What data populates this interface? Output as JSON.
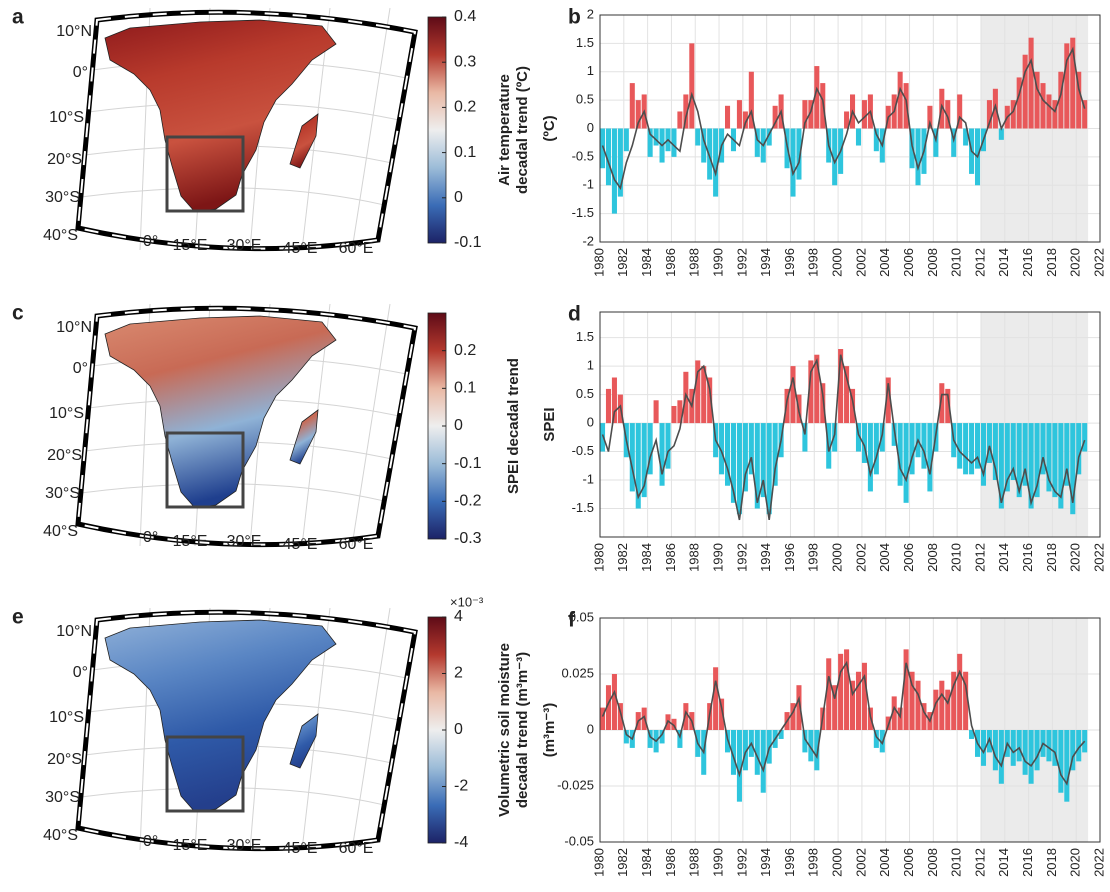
{
  "chart_data": [
    {
      "type": "map",
      "panel_label": "a",
      "lat_labels": [
        "10°N",
        "0°",
        "10°S",
        "20°S",
        "30°S",
        "40°S"
      ],
      "lon_labels": [
        "0°",
        "15°E",
        "30°E",
        "45°E",
        "60°E"
      ],
      "land_colors": [
        "#8e1a1c",
        "#b83a2c",
        "#c9523f",
        "#7d1616"
      ],
      "colorbar": {
        "label": [
          "Air temperature",
          "decadal trend (ºC)"
        ],
        "clim": [
          -0.1,
          0.4
        ],
        "cticks": [
          -0.1,
          0,
          0.1,
          0.2,
          0.3,
          0.4
        ],
        "colors": [
          "#5e0b17",
          "#b4392e",
          "#e9b8a4",
          "#eeeeee",
          "#9cbcd8",
          "#3a6cb6",
          "#1c2266"
        ]
      }
    },
    {
      "type": "combo",
      "panel_label": "b",
      "ylabel": "(ºC)",
      "x": [
        1980,
        1980.5,
        1981,
        1981.5,
        1982,
        1982.5,
        1983,
        1983.5,
        1984,
        1984.5,
        1985,
        1985.5,
        1986,
        1986.5,
        1987,
        1987.5,
        1988,
        1988.5,
        1989,
        1989.5,
        1990,
        1990.5,
        1991,
        1991.5,
        1992,
        1992.5,
        1993,
        1993.5,
        1994,
        1994.5,
        1995,
        1995.5,
        1996,
        1996.5,
        1997,
        1997.5,
        1998,
        1998.5,
        1999,
        1999.5,
        2000,
        2000.5,
        2001,
        2001.5,
        2002,
        2002.5,
        2003,
        2003.5,
        2004,
        2004.5,
        2005,
        2005.5,
        2006,
        2006.5,
        2007,
        2007.5,
        2008,
        2008.5,
        2009,
        2009.5,
        2010,
        2010.5,
        2011,
        2011.5,
        2012,
        2012.5,
        2013,
        2013.5,
        2014,
        2014.5,
        2015,
        2015.5,
        2016,
        2016.5,
        2017,
        2017.5,
        2018,
        2018.5,
        2019,
        2019.5,
        2020,
        2020.5
      ],
      "bars": {
        "positive_color": "#e8585a",
        "negative_color": "#2ec5dd",
        "values": [
          -0.7,
          -1.0,
          -1.5,
          -1.2,
          -0.4,
          0.8,
          0.5,
          0.6,
          -0.5,
          -0.3,
          -0.6,
          -0.4,
          -0.5,
          0.3,
          0.6,
          1.5,
          -0.3,
          -0.6,
          -0.9,
          -1.2,
          -0.6,
          0.4,
          -0.4,
          0.5,
          0.3,
          1.0,
          -0.5,
          -0.6,
          -0.3,
          0.4,
          0.6,
          -0.7,
          -1.2,
          -0.9,
          0.5,
          0.5,
          1.1,
          0.8,
          -0.6,
          -1.0,
          -0.8,
          0.3,
          0.6,
          -0.3,
          0.5,
          0.6,
          -0.4,
          -0.6,
          0.4,
          0.6,
          1.0,
          0.8,
          -0.7,
          -1.0,
          -0.8,
          0.4,
          -0.5,
          0.7,
          0.5,
          -0.5,
          0.6,
          -0.3,
          -0.8,
          -1.0,
          -0.4,
          0.5,
          0.7,
          -0.2,
          0.4,
          0.5,
          0.9,
          1.3,
          1.6,
          1.0,
          0.8,
          0.6,
          0.5,
          1.0,
          1.5,
          1.6,
          1.0,
          0.5
        ]
      },
      "line": {
        "color": "#4d4d4d",
        "values": [
          -0.3,
          -0.6,
          -0.9,
          -1.05,
          -0.6,
          -0.3,
          0.1,
          0.3,
          -0.1,
          -0.2,
          -0.3,
          -0.2,
          -0.3,
          -0.4,
          0.2,
          0.6,
          0.3,
          -0.2,
          -0.5,
          -0.8,
          -0.3,
          -0.1,
          -0.2,
          -0.3,
          0.1,
          0.3,
          -0.2,
          -0.3,
          -0.1,
          0.1,
          0.3,
          -0.3,
          -0.8,
          -0.6,
          0.1,
          0.3,
          0.7,
          0.5,
          -0.3,
          -0.6,
          -0.4,
          -0.1,
          0.3,
          0.1,
          0.2,
          0.3,
          -0.1,
          -0.3,
          0.2,
          0.3,
          0.7,
          0.5,
          -0.3,
          -0.7,
          -0.4,
          0.1,
          -0.2,
          0.4,
          0.2,
          -0.2,
          0.2,
          0.1,
          -0.4,
          -0.5,
          -0.2,
          0.1,
          0.4,
          0.0,
          0.2,
          0.3,
          0.6,
          1.0,
          1.2,
          0.7,
          0.5,
          0.4,
          0.3,
          0.6,
          1.2,
          1.4,
          0.7,
          0.35
        ]
      },
      "shaded_x": [
        2012,
        2021
      ],
      "shade_color": "#ebebeb",
      "grid": true,
      "xlim": [
        1980,
        2022
      ],
      "xticks": [
        1980,
        1982,
        1984,
        1986,
        1988,
        1990,
        1992,
        1994,
        1996,
        1998,
        2000,
        2002,
        2004,
        2006,
        2008,
        2010,
        2012,
        2014,
        2016,
        2018,
        2020,
        2022
      ],
      "ylim": [
        -2,
        2
      ],
      "yticks": [
        -2,
        -1.5,
        -1,
        -0.5,
        0,
        0.5,
        1,
        1.5,
        2
      ]
    },
    {
      "type": "map",
      "panel_label": "c",
      "lat_labels": [
        "10°N",
        "0°",
        "10°S",
        "20°S",
        "30°S",
        "40°S"
      ],
      "lon_labels": [
        "0°",
        "15°E",
        "30°E",
        "45°E",
        "60°E"
      ],
      "land_colors": [
        "#d98a70",
        "#c86a55",
        "#8fb2d6",
        "#1f3f8e"
      ],
      "colorbar": {
        "label": [
          "SPEI decadal trend"
        ],
        "clim": [
          -0.3,
          0.3
        ],
        "cticks": [
          -0.3,
          -0.2,
          -0.1,
          0,
          0.1,
          0.2
        ],
        "colors": [
          "#5e0b17",
          "#b4392e",
          "#e9b8a4",
          "#eeeeee",
          "#9cbcd8",
          "#3a6cb6",
          "#1c2266"
        ]
      }
    },
    {
      "type": "combo",
      "panel_label": "d",
      "ylabel": "SPEI",
      "x": [
        1980,
        1980.5,
        1981,
        1981.5,
        1982,
        1982.5,
        1983,
        1983.5,
        1984,
        1984.5,
        1985,
        1985.5,
        1986,
        1986.5,
        1987,
        1987.5,
        1988,
        1988.5,
        1989,
        1989.5,
        1990,
        1990.5,
        1991,
        1991.5,
        1992,
        1992.5,
        1993,
        1993.5,
        1994,
        1994.5,
        1995,
        1995.5,
        1996,
        1996.5,
        1997,
        1997.5,
        1998,
        1998.5,
        1999,
        1999.5,
        2000,
        2000.5,
        2001,
        2001.5,
        2002,
        2002.5,
        2003,
        2003.5,
        2004,
        2004.5,
        2005,
        2005.5,
        2006,
        2006.5,
        2007,
        2007.5,
        2008,
        2008.5,
        2009,
        2009.5,
        2010,
        2010.5,
        2011,
        2011.5,
        2012,
        2012.5,
        2013,
        2013.5,
        2014,
        2014.5,
        2015,
        2015.5,
        2016,
        2016.5,
        2017,
        2017.5,
        2018,
        2018.5,
        2019,
        2019.5,
        2020,
        2020.5
      ],
      "bars": {
        "positive_color": "#e8585a",
        "negative_color": "#2ec5dd",
        "values": [
          -0.5,
          0.6,
          0.8,
          0.5,
          -0.6,
          -1.2,
          -1.5,
          -1.3,
          -0.9,
          0.4,
          -1.1,
          -0.8,
          0.3,
          0.4,
          0.9,
          0.6,
          1.1,
          1.0,
          0.8,
          -0.6,
          -0.9,
          -1.1,
          -1.4,
          -1.6,
          -1.2,
          -0.9,
          -1.5,
          -1.3,
          -1.6,
          -1.1,
          -0.6,
          0.6,
          1.0,
          0.5,
          -0.5,
          1.1,
          1.2,
          0.7,
          -0.8,
          -0.5,
          1.3,
          1.0,
          0.6,
          -0.5,
          -0.7,
          -1.2,
          -0.9,
          -0.5,
          0.8,
          -0.4,
          -1.1,
          -1.4,
          -0.9,
          -0.6,
          -0.8,
          -1.2,
          -0.5,
          0.7,
          0.6,
          -0.6,
          -0.8,
          -0.9,
          -0.9,
          -0.8,
          -1.1,
          -0.7,
          -1.0,
          -1.5,
          -1.2,
          -1.0,
          -1.3,
          -1.1,
          -1.5,
          -1.3,
          -0.9,
          -1.2,
          -1.3,
          -1.5,
          -1.1,
          -1.6,
          -0.9,
          -0.5
        ]
      },
      "line": {
        "color": "#4d4d4d",
        "values": [
          -0.2,
          -0.5,
          0.2,
          0.3,
          -0.3,
          -0.8,
          -1.3,
          -1.1,
          -0.6,
          -0.3,
          -0.9,
          -0.5,
          -0.4,
          -0.1,
          0.5,
          0.3,
          0.9,
          1.0,
          0.6,
          -0.3,
          -0.5,
          -0.8,
          -1.2,
          -1.7,
          -0.9,
          -0.6,
          -1.4,
          -1.0,
          -1.7,
          -0.8,
          -0.3,
          0.4,
          0.8,
          0.2,
          -0.2,
          0.9,
          1.1,
          0.5,
          -0.5,
          -0.2,
          1.2,
          0.8,
          0.4,
          -0.2,
          -0.4,
          -0.9,
          -0.6,
          -0.2,
          0.7,
          -0.1,
          -0.8,
          -1.0,
          -0.6,
          -0.3,
          -0.5,
          -0.9,
          -0.2,
          0.5,
          0.5,
          -0.3,
          -0.5,
          -0.6,
          -0.7,
          -0.6,
          -0.9,
          -0.4,
          -0.8,
          -1.4,
          -1.0,
          -0.8,
          -1.2,
          -0.8,
          -1.4,
          -1.1,
          -0.6,
          -1.0,
          -1.2,
          -1.3,
          -0.8,
          -1.4,
          -0.6,
          -0.3
        ]
      },
      "shaded_x": [
        2012,
        2021
      ],
      "shade_color": "#ebebeb",
      "grid": true,
      "xlim": [
        1980,
        2022
      ],
      "xticks": [
        1980,
        1982,
        1984,
        1986,
        1988,
        1990,
        1992,
        1994,
        1996,
        1998,
        2000,
        2002,
        2004,
        2006,
        2008,
        2010,
        2012,
        2014,
        2016,
        2018,
        2020,
        2022
      ],
      "ylim": [
        -2,
        1.95
      ],
      "yticks": [
        -1.5,
        -1,
        -0.5,
        0,
        0.5,
        1,
        1.5
      ]
    },
    {
      "type": "map",
      "panel_label": "e",
      "lat_labels": [
        "10°N",
        "0°",
        "10°S",
        "20°S",
        "30°S",
        "40°S"
      ],
      "lon_labels": [
        "0°",
        "15°E",
        "30°E",
        "45°E",
        "60°E"
      ],
      "land_colors": [
        "#8fb0d8",
        "#5a86c4",
        "#2f5aa8",
        "#243f8c"
      ],
      "colorbar": {
        "label": [
          "Volumetric soil moisture",
          "decadal trend (m³m⁻³)"
        ],
        "clim": [
          -4,
          4
        ],
        "cticks": [
          -4,
          -2,
          0,
          2,
          4
        ],
        "multiplier": "×10⁻³",
        "colors": [
          "#5e0b17",
          "#b4392e",
          "#e9b8a4",
          "#eeeeee",
          "#9cbcd8",
          "#3a6cb6",
          "#1c2266"
        ]
      }
    },
    {
      "type": "combo",
      "panel_label": "f",
      "ylabel": "(m³m⁻³)",
      "x": [
        1980,
        1980.5,
        1981,
        1981.5,
        1982,
        1982.5,
        1983,
        1983.5,
        1984,
        1984.5,
        1985,
        1985.5,
        1986,
        1986.5,
        1987,
        1987.5,
        1988,
        1988.5,
        1989,
        1989.5,
        1990,
        1990.5,
        1991,
        1991.5,
        1992,
        1992.5,
        1993,
        1993.5,
        1994,
        1994.5,
        1995,
        1995.5,
        1996,
        1996.5,
        1997,
        1997.5,
        1998,
        1998.5,
        1999,
        1999.5,
        2000,
        2000.5,
        2001,
        2001.5,
        2002,
        2002.5,
        2003,
        2003.5,
        2004,
        2004.5,
        2005,
        2005.5,
        2006,
        2006.5,
        2007,
        2007.5,
        2008,
        2008.5,
        2009,
        2009.5,
        2010,
        2010.5,
        2011,
        2011.5,
        2012,
        2012.5,
        2013,
        2013.5,
        2014,
        2014.5,
        2015,
        2015.5,
        2016,
        2016.5,
        2017,
        2017.5,
        2018,
        2018.5,
        2019,
        2019.5,
        2020,
        2020.5
      ],
      "bars": {
        "positive_color": "#e8585a",
        "negative_color": "#2ec5dd",
        "values": [
          0.01,
          0.02,
          0.025,
          0.012,
          -0.006,
          -0.008,
          0.008,
          0.01,
          -0.008,
          -0.01,
          -0.006,
          0.007,
          0.005,
          -0.008,
          0.012,
          0.008,
          -0.012,
          -0.02,
          0.012,
          0.028,
          0.014,
          -0.01,
          -0.02,
          -0.032,
          -0.018,
          -0.012,
          -0.02,
          -0.028,
          -0.015,
          -0.008,
          -0.004,
          0.008,
          0.012,
          0.02,
          -0.01,
          -0.014,
          -0.018,
          0.01,
          0.032,
          0.02,
          0.034,
          0.036,
          0.022,
          0.026,
          0.03,
          0.01,
          -0.008,
          -0.01,
          0.006,
          0.015,
          0.01,
          0.036,
          0.026,
          0.022,
          0.012,
          0.008,
          0.018,
          0.022,
          0.018,
          0.026,
          0.034,
          0.026,
          -0.004,
          -0.012,
          -0.016,
          -0.01,
          -0.018,
          -0.024,
          -0.012,
          -0.016,
          -0.014,
          -0.02,
          -0.024,
          -0.018,
          -0.012,
          -0.014,
          -0.016,
          -0.028,
          -0.032,
          -0.018,
          -0.014,
          -0.01
        ]
      },
      "line": {
        "color": "#4d4d4d",
        "values": [
          0.006,
          0.012,
          0.017,
          0.008,
          -0.002,
          -0.004,
          0.004,
          0.006,
          -0.003,
          -0.005,
          -0.002,
          0.004,
          0.002,
          -0.003,
          0.008,
          0.004,
          -0.006,
          -0.01,
          0.007,
          0.022,
          0.01,
          -0.004,
          -0.012,
          -0.02,
          -0.01,
          -0.006,
          -0.012,
          -0.018,
          -0.008,
          -0.004,
          0.0,
          0.004,
          0.008,
          0.014,
          -0.004,
          -0.008,
          -0.012,
          0.006,
          0.024,
          0.014,
          0.026,
          0.03,
          0.016,
          0.02,
          0.024,
          0.006,
          -0.003,
          -0.006,
          0.002,
          0.01,
          0.006,
          0.03,
          0.02,
          0.016,
          0.008,
          0.004,
          0.012,
          0.016,
          0.012,
          0.02,
          0.026,
          0.02,
          0.002,
          -0.006,
          -0.01,
          -0.004,
          -0.012,
          -0.016,
          -0.006,
          -0.01,
          -0.008,
          -0.014,
          -0.016,
          -0.012,
          -0.006,
          -0.008,
          -0.01,
          -0.02,
          -0.024,
          -0.012,
          -0.008,
          -0.005
        ]
      },
      "shaded_x": [
        2012,
        2021
      ],
      "shade_color": "#ebebeb",
      "grid": true,
      "xlim": [
        1980,
        2022
      ],
      "xticks": [
        1980,
        1982,
        1984,
        1986,
        1988,
        1990,
        1992,
        1994,
        1996,
        1998,
        2000,
        2002,
        2004,
        2006,
        2008,
        2010,
        2012,
        2014,
        2016,
        2018,
        2020,
        2022
      ],
      "ylim": [
        -0.05,
        0.05
      ],
      "yticks": [
        -0.05,
        -0.025,
        0,
        0.025,
        0.05
      ]
    }
  ]
}
